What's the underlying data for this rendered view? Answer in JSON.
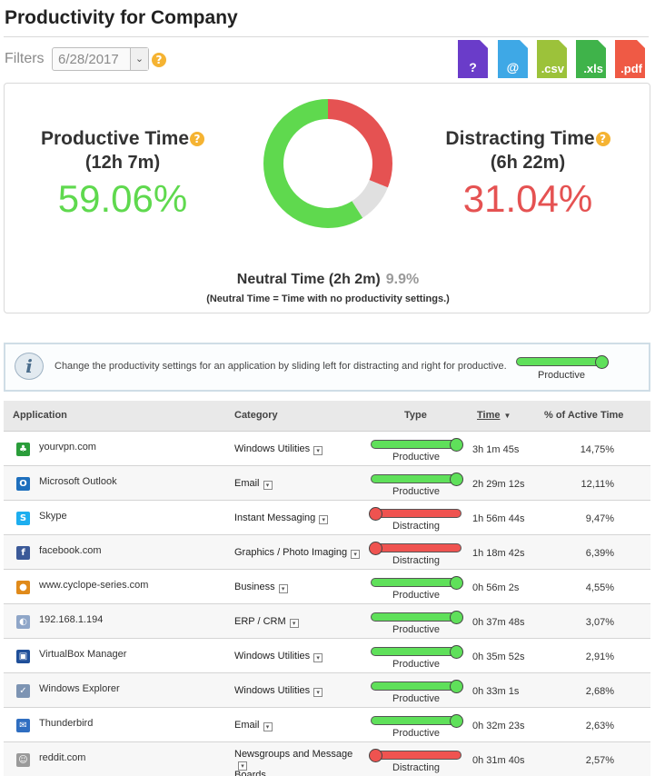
{
  "page": {
    "title": "Productivity for Company",
    "filters_label": "Filters",
    "date_value": "6/28/2017",
    "dropdown_glyph": "⌄",
    "help_glyph": "?"
  },
  "exports": [
    {
      "name": "help-export",
      "label": "?",
      "color": "#6a3cc9"
    },
    {
      "name": "email-export",
      "label": "@",
      "color": "#3ea8e6"
    },
    {
      "name": "csv-export",
      "label": ".csv",
      "color": "#9cc23a"
    },
    {
      "name": "xls-export",
      "label": ".xls",
      "color": "#3fb34a"
    },
    {
      "name": "pdf-export",
      "label": ".pdf",
      "color": "#ef5a45"
    }
  ],
  "summary": {
    "productive": {
      "label": "Productive Time",
      "duration": "(12h 7m)",
      "percent": "59.06%",
      "color": "#5fd94e"
    },
    "distracting": {
      "label": "Distracting Time",
      "duration": "(6h 22m)",
      "percent": "31.04%",
      "color": "#e55252"
    },
    "neutral": {
      "label": "Neutral Time (2h 2m)",
      "percent": "9.9%",
      "note": "(Neutral Time = Time with no productivity settings.)",
      "color": "#e0e0e0"
    },
    "donut_fractions": {
      "productive": 59.06,
      "distracting": 31.04,
      "neutral": 9.9
    }
  },
  "info": {
    "icon": "i",
    "text": "Change the productivity settings for an application by sliding left for distracting and right for productive.",
    "slider_caption": "Productive"
  },
  "table": {
    "headers": {
      "application": "Application",
      "category": "Category",
      "type": "Type",
      "time": "Time",
      "time_sort": "▼",
      "active": "% of Active Time"
    },
    "dropdown_glyph": "▾",
    "rows": [
      {
        "name": "yourvpn.com",
        "icon": "♣",
        "icon_color": "#2a9d3a",
        "category_lines": [
          "Windows Utilities"
        ],
        "type": "Productive",
        "time": "3h 1m 45s",
        "pct": "14,75%"
      },
      {
        "name": "Microsoft Outlook",
        "icon": "O",
        "icon_color": "#1e6fbd",
        "category_lines": [
          "Email"
        ],
        "type": "Productive",
        "time": "2h 29m 12s",
        "pct": "12,11%"
      },
      {
        "name": "Skype",
        "icon": "S",
        "icon_color": "#1daeef",
        "category_lines": [
          "Instant Messaging"
        ],
        "type": "Distracting",
        "time": "1h 56m 44s",
        "pct": "9,47%"
      },
      {
        "name": "facebook.com",
        "icon": "f",
        "icon_color": "#3b5998",
        "category_lines": [
          "Graphics / Photo Imaging"
        ],
        "type": "Distracting",
        "time": "1h 18m 42s",
        "pct": "6,39%"
      },
      {
        "name": "www.cyclope-series.com",
        "icon": "●",
        "icon_color": "#e08a1a",
        "category_lines": [
          "Business"
        ],
        "type": "Productive",
        "time": "0h 56m 2s",
        "pct": "4,55%"
      },
      {
        "name": "192.168.1.194",
        "icon": "◐",
        "icon_color": "#8fa6c8",
        "category_lines": [
          "ERP / CRM"
        ],
        "type": "Productive",
        "time": "0h 37m 48s",
        "pct": "3,07%"
      },
      {
        "name": "VirtualBox Manager",
        "icon": "▣",
        "icon_color": "#1f4f99",
        "category_lines": [
          "Windows Utilities"
        ],
        "type": "Productive",
        "time": "0h 35m 52s",
        "pct": "2,91%"
      },
      {
        "name": "Windows Explorer",
        "icon": "✓",
        "icon_color": "#7d94b3",
        "category_lines": [
          "Windows Utilities"
        ],
        "type": "Productive",
        "time": "0h 33m 1s",
        "pct": "2,68%"
      },
      {
        "name": "Thunderbird",
        "icon": "✉",
        "icon_color": "#2f6ec1",
        "category_lines": [
          "Email"
        ],
        "type": "Productive",
        "time": "0h 32m 23s",
        "pct": "2,63%"
      },
      {
        "name": "reddit.com",
        "icon": "☺",
        "icon_color": "#9a9a9a",
        "category_lines": [
          "Newsgroups and Message",
          "Boards"
        ],
        "type": "Distracting",
        "time": "0h 31m 40s",
        "pct": "2,57%"
      }
    ]
  }
}
